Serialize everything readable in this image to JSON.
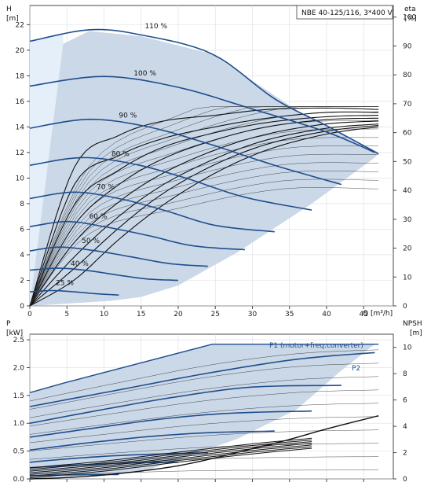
{
  "chart_data": [
    {
      "type": "line",
      "title": "NBE 40-125/116, 3*400 V",
      "xlabel": "Q [m³/h]",
      "ylabel": "H [m]",
      "y_title": "H",
      "y_unit": "[m]",
      "y2_title": "eta",
      "y2_unit": "[%]",
      "x_title": "Q",
      "x_unit": "[m³/h]",
      "xlim": [
        0,
        49
      ],
      "ylim": [
        0,
        23.5
      ],
      "y2lim": [
        0,
        104
      ],
      "xticks": [
        0,
        5,
        10,
        15,
        20,
        25,
        30,
        35,
        40,
        45
      ],
      "yticks": [
        0,
        2,
        4,
        6,
        8,
        10,
        12,
        14,
        16,
        18,
        20,
        22
      ],
      "y2ticks": [
        0,
        10,
        20,
        30,
        40,
        50,
        60,
        70,
        80,
        90,
        100
      ],
      "grid": true,
      "envelope": [
        {
          "q": 0,
          "h": 0
        },
        {
          "q": 4.5,
          "h": 20.5
        },
        {
          "q": 8,
          "h": 21.5
        },
        {
          "q": 15,
          "h": 21.1
        },
        {
          "q": 24.6,
          "h": 19.7
        },
        {
          "q": 36,
          "h": 15.3
        },
        {
          "q": 47,
          "h": 12.0
        },
        {
          "q": 46.5,
          "h": 11.6
        },
        {
          "q": 38,
          "h": 8.0
        },
        {
          "q": 28,
          "h": 4.2
        },
        {
          "q": 20,
          "h": 1.6
        },
        {
          "q": 15,
          "h": 0.7
        },
        {
          "q": 11,
          "h": 0.4
        },
        {
          "q": 0,
          "h": 0
        }
      ],
      "series": [
        {
          "name": "110 %",
          "shutoff_head": 20.7,
          "q": [
            0,
            8,
            15,
            24.6,
            33,
            40,
            47
          ],
          "h": [
            20.7,
            21.6,
            21.2,
            19.7,
            16.2,
            14.1,
            11.9
          ]
        },
        {
          "name": "100 %",
          "shutoff_head": 17.2,
          "q": [
            0,
            10,
            20,
            30,
            40,
            46.5
          ],
          "h": [
            17.2,
            17.95,
            17.1,
            15.4,
            13.6,
            12.0
          ]
        },
        {
          "name": "90 %",
          "shutoff_head": 13.9,
          "q": [
            0,
            8,
            16,
            24,
            33,
            42
          ],
          "h": [
            13.9,
            14.6,
            14.0,
            12.7,
            11.0,
            9.5
          ]
        },
        {
          "name": "80 %",
          "shutoff_head": 11.0,
          "q": [
            0,
            7,
            14,
            21,
            29,
            38
          ],
          "h": [
            11.0,
            11.6,
            11.1,
            10.0,
            8.5,
            7.5
          ]
        },
        {
          "name": "70 %",
          "shutoff_head": 8.4,
          "q": [
            0,
            6,
            12,
            18,
            25,
            33
          ],
          "h": [
            8.4,
            8.9,
            8.4,
            7.5,
            6.3,
            5.8
          ]
        },
        {
          "name": "60 %",
          "shutoff_head": 6.2,
          "q": [
            0,
            5,
            10,
            16,
            22,
            29
          ],
          "h": [
            6.2,
            6.6,
            6.2,
            5.5,
            4.7,
            4.4
          ]
        },
        {
          "name": "50 %",
          "shutoff_head": 4.3,
          "q": [
            0,
            4,
            9,
            14,
            19,
            24
          ],
          "h": [
            4.3,
            4.6,
            4.3,
            3.8,
            3.3,
            3.1
          ]
        },
        {
          "name": "40 %",
          "shutoff_head": 2.8,
          "q": [
            0,
            4,
            8,
            12,
            16,
            20
          ],
          "h": [
            2.8,
            2.95,
            2.75,
            2.4,
            2.1,
            2.0
          ]
        },
        {
          "name": "25 %",
          "shutoff_head": 1.1,
          "q": [
            0,
            3,
            6,
            9,
            12
          ],
          "h": [
            1.1,
            1.2,
            1.1,
            0.95,
            0.85
          ]
        }
      ],
      "efficiency_series": [
        {
          "q": [
            0,
            6,
            12,
            18,
            25,
            32,
            40,
            47
          ],
          "eta": [
            0,
            48,
            59,
            64,
            66,
            68,
            68.5,
            68
          ]
        },
        {
          "q": [
            0,
            6,
            12,
            18,
            25,
            32,
            40,
            47
          ],
          "eta": [
            0,
            42,
            52,
            58,
            62,
            65,
            67,
            67
          ]
        },
        {
          "q": [
            0,
            6,
            12,
            18,
            25,
            32,
            40,
            47
          ],
          "eta": [
            0,
            35,
            47,
            55,
            60,
            63.5,
            65.5,
            66
          ]
        },
        {
          "q": [
            0,
            6,
            12,
            18,
            25,
            32,
            40,
            47
          ],
          "eta": [
            0,
            28,
            42,
            51,
            57.5,
            62,
            64.5,
            65
          ]
        },
        {
          "q": [
            0,
            6,
            12,
            18,
            25,
            32,
            40,
            47
          ],
          "eta": [
            0,
            22,
            36,
            46,
            54,
            59.5,
            63,
            64
          ]
        },
        {
          "q": [
            0,
            6,
            12,
            18,
            25,
            32,
            40,
            47
          ],
          "eta": [
            0,
            17,
            31,
            42,
            51,
            57.5,
            61.5,
            63
          ]
        },
        {
          "q": [
            0,
            6,
            12,
            18,
            25,
            32,
            40,
            47
          ],
          "eta": [
            0,
            13,
            27,
            39,
            49,
            56,
            60.5,
            62.5
          ]
        },
        {
          "q": [
            0,
            6,
            12,
            18,
            25,
            32,
            40,
            47
          ],
          "eta": [
            0,
            9,
            23,
            35,
            46,
            54,
            59.5,
            62
          ]
        }
      ]
    },
    {
      "type": "line",
      "xlabel": "",
      "ylabel": "P [kW]",
      "y_title": "P",
      "y_unit": "[kW]",
      "y2_title": "NPSH",
      "y2_unit": "[m]",
      "xlim": [
        0,
        49
      ],
      "ylim": [
        0,
        2.6
      ],
      "y2lim": [
        0,
        11
      ],
      "yticks": [
        0.0,
        0.5,
        1.0,
        1.5,
        2.0,
        2.5
      ],
      "ytick_labels": [
        "0.0",
        "0.5",
        "1.0",
        "1.5",
        "2.0",
        "2.5"
      ],
      "y2ticks": [
        0,
        2,
        4,
        6,
        8,
        10
      ],
      "grid": true,
      "envelope": [
        {
          "q": 0,
          "p": 1.55
        },
        {
          "q": 4.5,
          "p": 1.72
        },
        {
          "q": 24.6,
          "p": 2.42
        },
        {
          "q": 47,
          "p": 2.42
        },
        {
          "q": 46.5,
          "p": 2.42
        },
        {
          "q": 42,
          "p": 1.95
        },
        {
          "q": 36,
          "p": 1.25
        },
        {
          "q": 28,
          "p": 0.72
        },
        {
          "q": 20,
          "p": 0.35
        },
        {
          "q": 15,
          "p": 0.12
        },
        {
          "q": 0,
          "p": 0
        }
      ],
      "annotations": [
        "P1 (motor+freq.converter)",
        "P2"
      ],
      "p1_max": {
        "q": [
          0,
          4.5,
          24.6,
          47
        ],
        "p": [
          1.55,
          1.72,
          2.42,
          2.42
        ]
      },
      "series": [
        {
          "name": "P2",
          "q": [
            0,
            12,
            24,
            36,
            46.5
          ],
          "p": [
            1.3,
            1.6,
            1.9,
            2.15,
            2.27
          ]
        },
        {
          "q": [
            0,
            10,
            20,
            30,
            42
          ],
          "p": [
            1.0,
            1.25,
            1.48,
            1.65,
            1.68
          ]
        },
        {
          "q": [
            0,
            9,
            18,
            27,
            38
          ],
          "p": [
            0.75,
            0.92,
            1.08,
            1.18,
            1.22
          ]
        },
        {
          "q": [
            0,
            8,
            16,
            24,
            33
          ],
          "p": [
            0.52,
            0.65,
            0.76,
            0.83,
            0.86
          ]
        },
        {
          "q": [
            0,
            6,
            12,
            18,
            24
          ],
          "p": [
            0.3,
            0.37,
            0.42,
            0.45,
            0.47
          ]
        },
        {
          "q": [
            0,
            5,
            10,
            15,
            20
          ],
          "p": [
            0.2,
            0.24,
            0.27,
            0.29,
            0.3
          ]
        },
        {
          "q": [
            0,
            4,
            8,
            12
          ],
          "p": [
            0.06,
            0.07,
            0.075,
            0.08
          ]
        }
      ],
      "npsh": {
        "q": [
          0,
          5,
          10,
          15,
          20,
          25,
          30,
          35,
          40,
          47
        ],
        "npsh": [
          0,
          0.1,
          0.3,
          0.6,
          1.0,
          1.6,
          2.3,
          3.0,
          3.8,
          4.8
        ]
      }
    }
  ]
}
